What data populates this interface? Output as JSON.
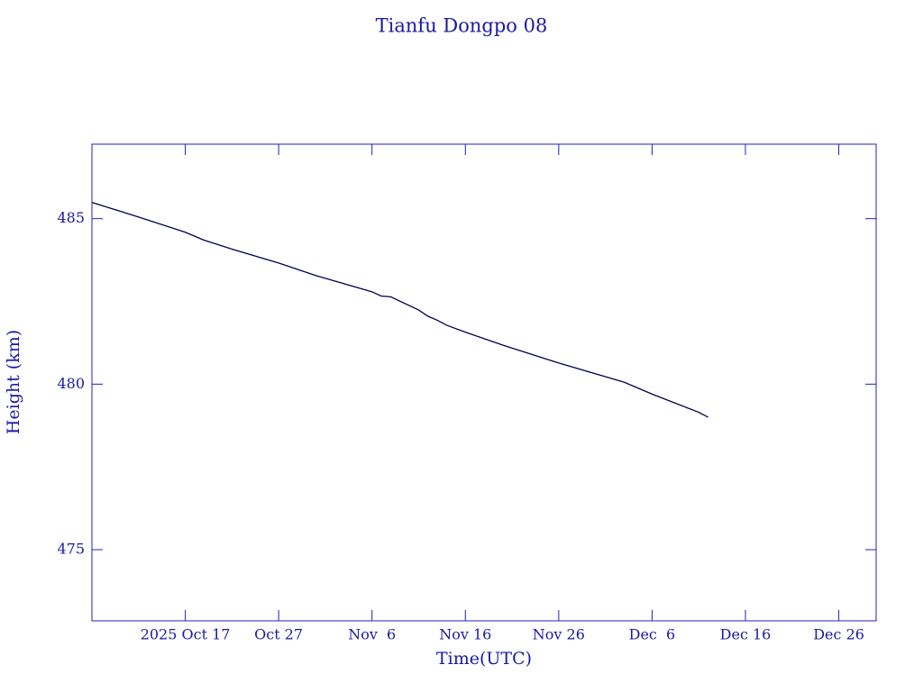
{
  "chart_data": {
    "type": "line",
    "title": "Tianfu Dongpo 08",
    "x_label": "Time(UTC)",
    "y_label": "Height (km)",
    "x": [
      "2025-10-07",
      "2025-10-12",
      "2025-10-17",
      "2025-10-19",
      "2025-10-22",
      "2025-10-27",
      "2025-10-31",
      "2025-11-06",
      "2025-11-07",
      "2025-11-08",
      "2025-11-11",
      "2025-11-12",
      "2025-11-13",
      "2025-11-14",
      "2025-11-16",
      "2025-11-20",
      "2025-11-26",
      "2025-12-03",
      "2025-12-06",
      "2025-12-11",
      "2025-12-12"
    ],
    "series": [
      {
        "name": "Height",
        "color": "#000050",
        "values": [
          485.49,
          485.05,
          484.59,
          484.35,
          484.08,
          483.66,
          483.28,
          482.79,
          482.66,
          482.64,
          482.24,
          482.05,
          481.93,
          481.78,
          481.57,
          481.18,
          480.64,
          480.06,
          479.7,
          479.15,
          479.0
        ]
      }
    ],
    "xlim": [
      "2025-10-07",
      "2025-12-30"
    ],
    "xticks": [
      {
        "value": "2025-10-17",
        "label": "2025 Oct 17"
      },
      {
        "value": "2025-10-27",
        "label": "Oct 27"
      },
      {
        "value": "2025-11-06",
        "label": "Nov  6"
      },
      {
        "value": "2025-11-16",
        "label": "Nov 16"
      },
      {
        "value": "2025-11-26",
        "label": "Nov 26"
      },
      {
        "value": "2025-12-06",
        "label": "Dec  6"
      },
      {
        "value": "2025-12-16",
        "label": "Dec 16"
      },
      {
        "value": "2025-12-26",
        "label": "Dec 26"
      }
    ],
    "ylim": [
      472.85,
      487.25
    ],
    "yticks": [
      475,
      480,
      485
    ],
    "grid": false,
    "text_color": "#1a1aa0",
    "frame_color": "#2020c0"
  }
}
